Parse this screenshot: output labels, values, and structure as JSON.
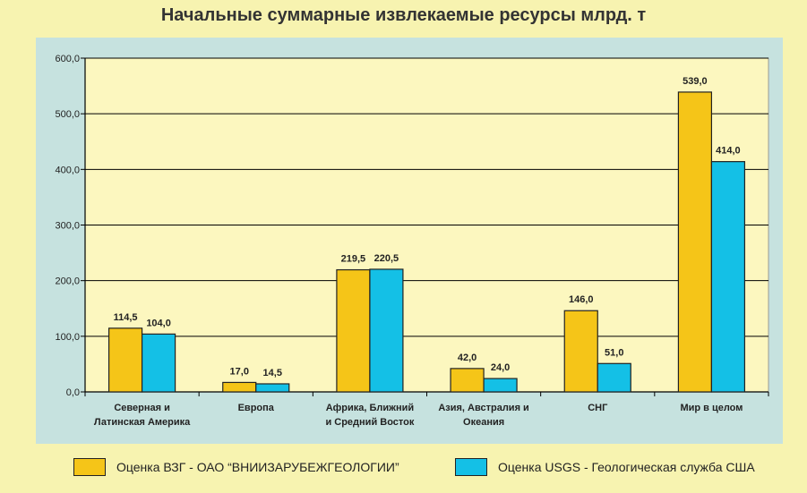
{
  "title": "Начальные суммарные извлекаемые ресурсы млрд. т",
  "colors": {
    "series1": "#f5c518",
    "series2": "#14c0e6",
    "plot_bg": "#fcf7bf",
    "panel_bg": "#c6e2df",
    "page_bg": "#f7f3b0"
  },
  "legend": {
    "series1": "Оценка ВЗГ - ОАО “ВНИИЗАРУБЕЖГЕОЛОГИИ”",
    "series2": "Оценка USGS - Геологическая служба США"
  },
  "chart_data": {
    "type": "bar",
    "categories": [
      [
        "Северная и",
        "Латинская Америка"
      ],
      [
        "Европа"
      ],
      [
        "Африка, Ближний",
        "и Средний Восток"
      ],
      [
        "Азия, Австралия и",
        "Океания"
      ],
      [
        "СНГ"
      ],
      [
        "Мир в целом"
      ]
    ],
    "series": [
      {
        "name": "Оценка ВЗГ - ОАО “ВНИИЗАРУБЕЖГЕОЛОГИИ”",
        "values": [
          114.5,
          17.0,
          219.5,
          42.0,
          146.0,
          539.0
        ],
        "labels": [
          "114,5",
          "17,0",
          "219,5",
          "42,0",
          "146,0",
          "539,0"
        ]
      },
      {
        "name": "Оценка USGS - Геологическая служба США",
        "values": [
          104.0,
          14.5,
          220.5,
          24.0,
          51.0,
          414.0
        ],
        "labels": [
          "104,0",
          "14,5",
          "220,5",
          "24,0",
          "51,0",
          "414,0"
        ]
      }
    ],
    "ylim": [
      0,
      600
    ],
    "yticks": [
      0,
      100,
      200,
      300,
      400,
      500,
      600
    ],
    "ytick_labels": [
      "0,0",
      "100,0",
      "200,0",
      "300,0",
      "400,0",
      "500,0",
      "600,0"
    ],
    "grid": true,
    "legend_position": "bottom"
  }
}
